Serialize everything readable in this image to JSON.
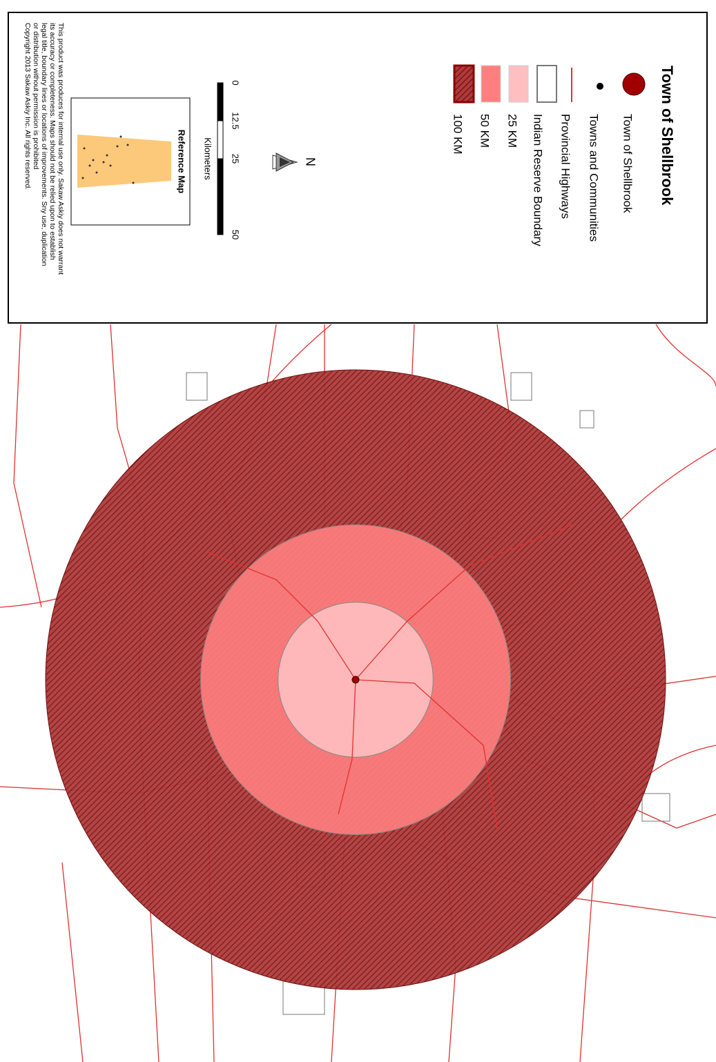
{
  "title": "Town of Shellbrook",
  "legend": [
    {
      "label": "Town of Shellbrook",
      "symbol": "town",
      "color": "#a00000"
    },
    {
      "label": "Towns and Communities",
      "symbol": "dot",
      "color": "#000000"
    },
    {
      "label": "Provincial Highways",
      "symbol": "line",
      "color": "#e03030"
    },
    {
      "label": "Indian Reserve Boundary",
      "symbol": "box",
      "color": "#777777"
    }
  ],
  "buffers": [
    {
      "label": "25 KM",
      "radius_km": 25,
      "color": "#ffbfc0"
    },
    {
      "label": "50 KM",
      "radius_km": 50,
      "color": "#ff7f7f"
    },
    {
      "label": "100 KM",
      "radius_km": 100,
      "color": "#a83232",
      "hatched": true
    }
  ],
  "north": "N",
  "scale_bar": {
    "ticks": [
      0,
      12.5,
      25,
      50
    ],
    "unit": "Kilometers"
  },
  "reference_map": {
    "title": "Reference Map"
  },
  "disclaimer": [
    "This product was produces for internal use only.  Sakaw Askiy does not warrant",
    "its accuracy or completeness.  Maps should not be relied upon to establish",
    "legal title, boundary lines or locations of improvements. Sny use, duplication",
    "or distribution without permission is prohibited",
    "Copyright 2013 Sakaw Askiy Inc.  All rights reserved."
  ]
}
